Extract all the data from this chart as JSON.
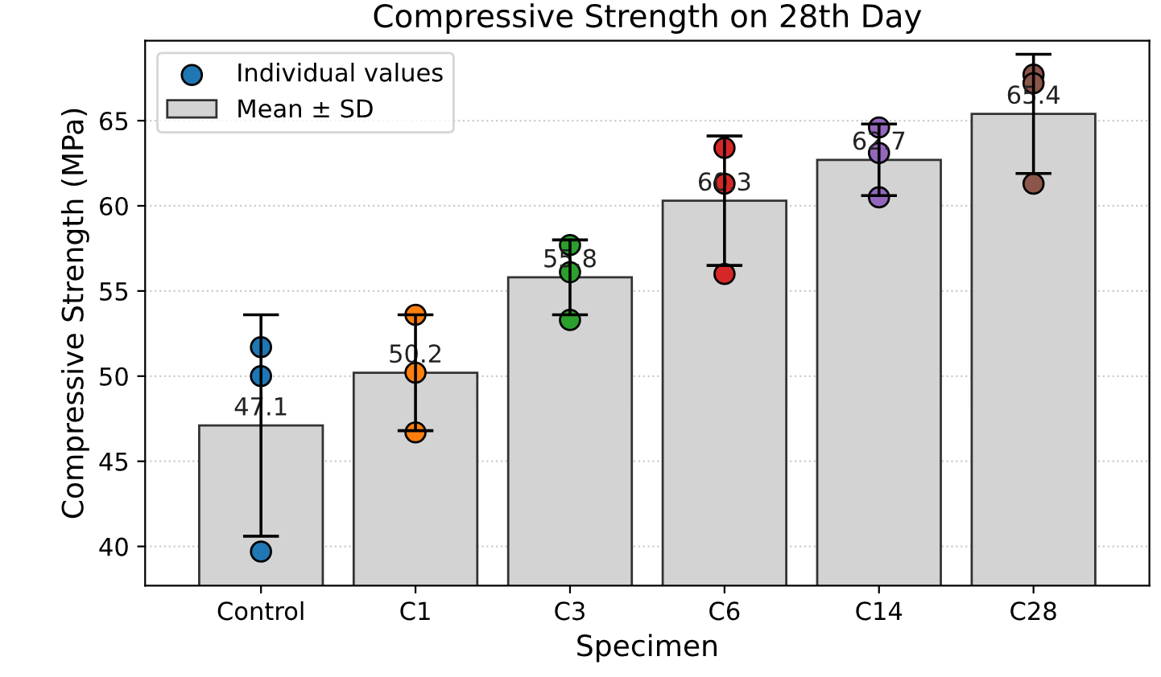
{
  "chart_data": {
    "type": "bar",
    "title": "Compressive Strength on 28th Day",
    "xlabel": "Specimen",
    "ylabel": "Compressive Strength (MPa)",
    "categories": [
      "Control",
      "C1",
      "C3",
      "C6",
      "C14",
      "C28"
    ],
    "series": [
      {
        "name": "Mean ± SD",
        "color": "#d3d3d3",
        "values": [
          47.1,
          50.2,
          55.8,
          60.3,
          62.7,
          65.4
        ],
        "errors": [
          6.5,
          3.4,
          2.2,
          3.8,
          2.1,
          3.5
        ],
        "value_labels": [
          "47.1",
          "50.2",
          "55.8",
          "60.3",
          "62.7",
          "65.4"
        ]
      },
      {
        "type": "scatter",
        "name": "Individual values",
        "marker": "circle",
        "x": [
          "Control",
          "Control",
          "Control",
          "C1",
          "C1",
          "C1",
          "C3",
          "C3",
          "C3",
          "C6",
          "C6",
          "C6",
          "C14",
          "C14",
          "C14",
          "C28",
          "C28",
          "C28"
        ],
        "values": [
          51.7,
          50.0,
          39.7,
          53.6,
          50.2,
          46.7,
          57.7,
          56.1,
          53.3,
          63.4,
          61.3,
          56.0,
          64.6,
          63.1,
          60.5,
          67.7,
          67.2,
          61.3
        ],
        "colors": [
          "#1f77b4",
          "#1f77b4",
          "#1f77b4",
          "#ff7f0e",
          "#ff7f0e",
          "#ff7f0e",
          "#2ca02c",
          "#2ca02c",
          "#2ca02c",
          "#d62728",
          "#d62728",
          "#d62728",
          "#9467bd",
          "#9467bd",
          "#9467bd",
          "#8c564b",
          "#8c564b",
          "#8c564b"
        ]
      }
    ],
    "ylim": [
      37.7,
      69.7
    ],
    "yticks": [
      40,
      45,
      50,
      55,
      60,
      65
    ],
    "grid": "y",
    "legend": "top left"
  }
}
